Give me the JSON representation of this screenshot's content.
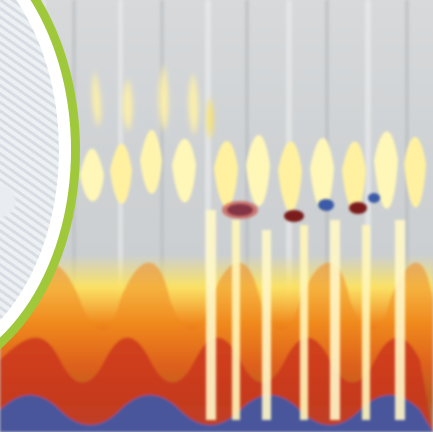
{
  "image": {
    "kind": "spectrogram-photo-collage",
    "palette": {
      "background": "#cfd2d4",
      "pale_yellow": "#fff7b8",
      "yellow": "#ffe45a",
      "orange": "#f08a1f",
      "red": "#c8301c",
      "dark_red": "#7a1d1a",
      "blue": "#3b5aa8",
      "ring_green": "#9fc93a",
      "ring_white": "#ffffff"
    },
    "inset": {
      "shape": "circle",
      "content": "snow-texture-photo",
      "border_color": "#9fc93a"
    }
  }
}
